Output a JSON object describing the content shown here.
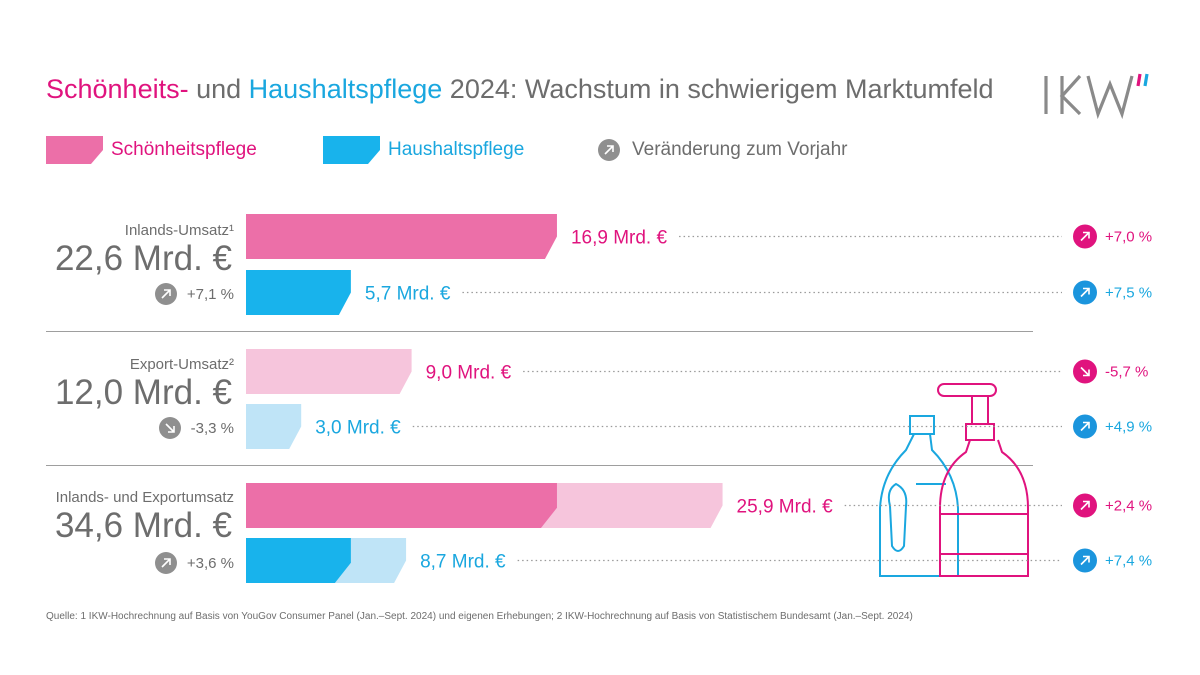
{
  "title": {
    "part1": "Schönheits-",
    "part2": " und ",
    "part3": "Haushaltspflege",
    "part4": " 2024: Wachstum in schwierigem Marktumfeld"
  },
  "logo": {
    "icon": "ikw-logo"
  },
  "legend": {
    "beauty": "Schönheitspflege",
    "household": "Haushaltspflege",
    "change": "Veränderung zum Vorjahr"
  },
  "colors": {
    "pink": "#e0137e",
    "pink_bar": "#ec6fa8",
    "pink_light": "#f6c5dc",
    "blue": "#1aa7df",
    "blue_bar": "#18b3ec",
    "blue_light": "#bfe4f7",
    "gray": "#6d6d6d",
    "gray_circle": "#8f8f8f"
  },
  "groups": [
    {
      "label": "Inlands-Umsatz¹",
      "total": "22,6 Mrd. €",
      "change": "+7,1 %",
      "direction": "up"
    },
    {
      "label": "Export-Umsatz²",
      "total": "12,0 Mrd. €",
      "change": "-3,3 %",
      "direction": "down"
    },
    {
      "label": "Inlands- und Exportumsatz",
      "total": "34,6 Mrd. €",
      "change": "+3,6 %",
      "direction": "up"
    }
  ],
  "chart_data": {
    "type": "bar",
    "orientation": "horizontal",
    "unit": "Mrd. €",
    "rows": [
      {
        "group": "Inlands-Umsatz¹",
        "series": "Schönheitspflege",
        "value": 16.9,
        "label": "16,9 Mrd. €",
        "change": "+7,0 %",
        "direction": "up",
        "style": "solid"
      },
      {
        "group": "Inlands-Umsatz¹",
        "series": "Haushaltspflege",
        "value": 5.7,
        "label": "5,7 Mrd. €",
        "change": "+7,5 %",
        "direction": "up",
        "style": "solid"
      },
      {
        "group": "Export-Umsatz²",
        "series": "Schönheitspflege",
        "value": 9.0,
        "label": "9,0 Mrd. €",
        "change": "-5,7 %",
        "direction": "down",
        "style": "light"
      },
      {
        "group": "Export-Umsatz²",
        "series": "Haushaltspflege",
        "value": 3.0,
        "label": "3,0 Mrd. €",
        "change": "+4,9 %",
        "direction": "up",
        "style": "light"
      },
      {
        "group": "Inlands- und Exportumsatz",
        "series": "Schönheitspflege",
        "value": 25.9,
        "label": "25,9 Mrd. €",
        "change": "+2,4 %",
        "direction": "up",
        "style": "stacked",
        "segments": [
          16.9,
          9.0
        ]
      },
      {
        "group": "Inlands- und Exportumsatz",
        "series": "Haushaltspflege",
        "value": 8.7,
        "label": "8,7 Mrd. €",
        "change": "+7,4 %",
        "direction": "up",
        "style": "stacked",
        "segments": [
          5.7,
          3.0
        ]
      }
    ]
  },
  "illustration": {
    "icon": "bottles-icon"
  },
  "footnote": "Quelle: 1 IKW-Hochrechnung auf Basis von YouGov Consumer Panel (Jan.–Sept. 2024) und eigenen Erhebungen; 2 IKW-Hochrechnung auf Basis von Statistischem Bundesamt (Jan.–Sept. 2024)"
}
